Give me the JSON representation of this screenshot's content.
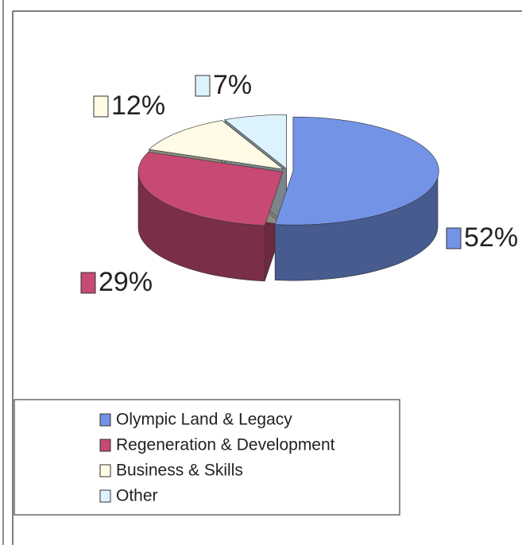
{
  "chart_data": {
    "type": "pie",
    "categories": [
      "Olympic Land & Legacy",
      "Regeneration & Development",
      "Business & Skills",
      "Other"
    ],
    "values": [
      52,
      29,
      12,
      7
    ],
    "value_labels": [
      "52%",
      "29%",
      "12%",
      "7%"
    ],
    "colors": [
      "#7393e6",
      "#c64a72",
      "#fffbe6",
      "#dcf2fc"
    ],
    "legend": "bottom"
  }
}
